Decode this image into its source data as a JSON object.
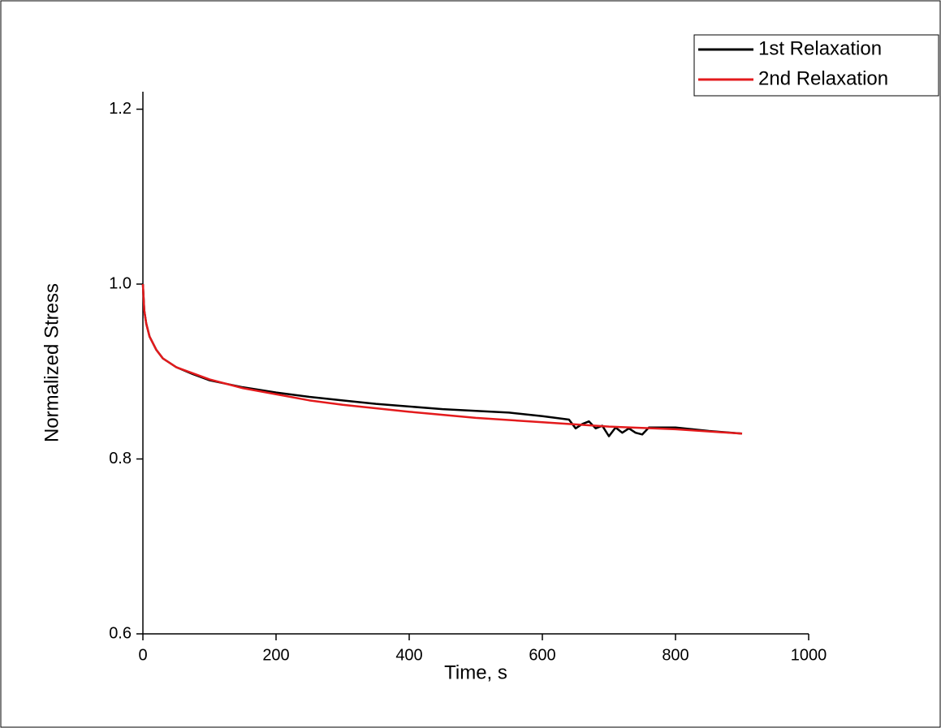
{
  "chart_data": {
    "type": "line",
    "xlabel": "Time, s",
    "ylabel": "Normalized Stress",
    "xlim": [
      0,
      1000
    ],
    "ylim": [
      0.6,
      1.22
    ],
    "xticks": [
      0,
      200,
      400,
      600,
      800,
      1000
    ],
    "yticks": [
      0.6,
      0.8,
      {
        "value": 1,
        "label": "1.0"
      },
      1.2
    ],
    "grid": false,
    "legend": "upper right",
    "series": [
      {
        "name": "1st Relaxation",
        "color": "#000000",
        "x": [
          0,
          2,
          5,
          10,
          20,
          30,
          50,
          75,
          100,
          150,
          200,
          250,
          300,
          350,
          400,
          450,
          500,
          550,
          600,
          640,
          650,
          660,
          670,
          680,
          690,
          700,
          710,
          720,
          730,
          740,
          750,
          760,
          800,
          850,
          900
        ],
        "values": [
          1.0,
          0.97,
          0.955,
          0.94,
          0.925,
          0.915,
          0.905,
          0.897,
          0.89,
          0.882,
          0.876,
          0.871,
          0.867,
          0.863,
          0.86,
          0.857,
          0.855,
          0.853,
          0.849,
          0.845,
          0.835,
          0.84,
          0.843,
          0.835,
          0.838,
          0.826,
          0.836,
          0.83,
          0.835,
          0.83,
          0.828,
          0.836,
          0.836,
          0.832,
          0.829
        ]
      },
      {
        "name": "2nd Relaxation",
        "color": "#e31a1c",
        "x": [
          0,
          2,
          5,
          10,
          20,
          30,
          50,
          75,
          100,
          150,
          200,
          250,
          300,
          400,
          500,
          600,
          700,
          800,
          900
        ],
        "values": [
          1.0,
          0.97,
          0.955,
          0.94,
          0.925,
          0.915,
          0.905,
          0.898,
          0.891,
          0.881,
          0.874,
          0.867,
          0.862,
          0.854,
          0.847,
          0.842,
          0.837,
          0.834,
          0.829
        ]
      }
    ]
  }
}
